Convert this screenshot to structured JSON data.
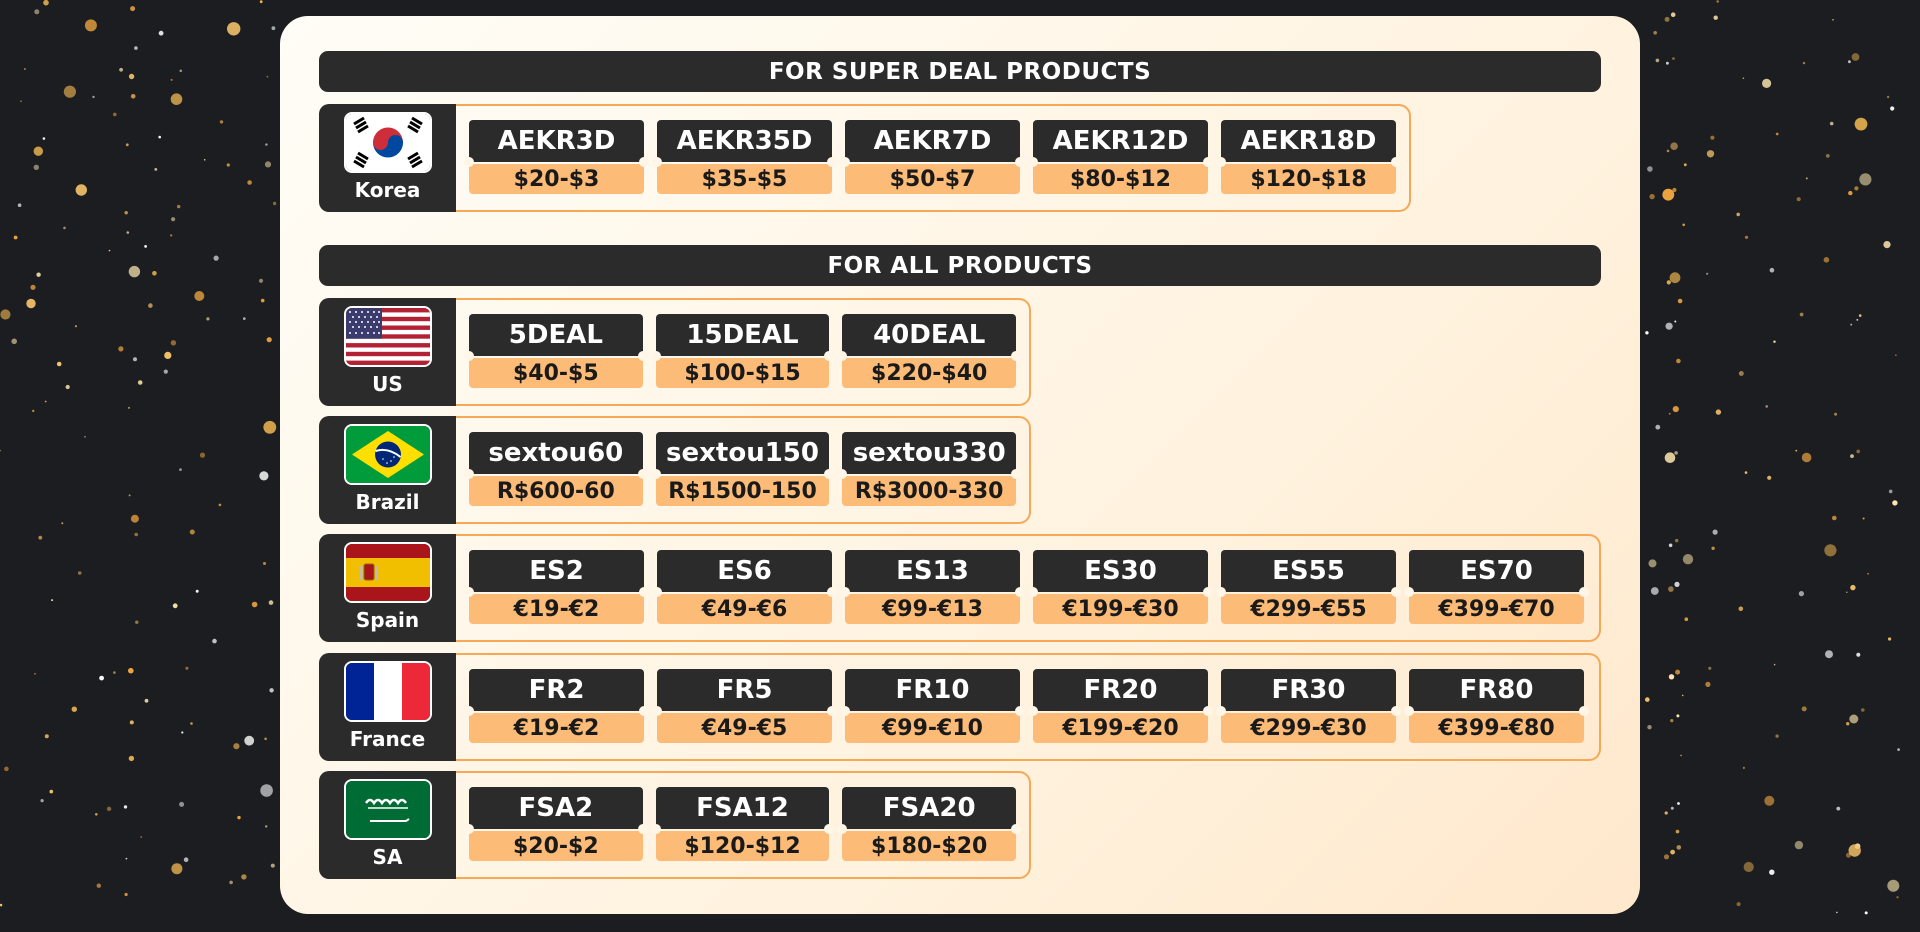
{
  "colors": {
    "background": "#1c1d21",
    "panel": "#fff6e8",
    "dark": "#2b2b2b",
    "accent_border": "#f5a956",
    "price_fill": "#fdbb78"
  },
  "sections": [
    {
      "title": "FOR SUPER DEAL PRODUCTS",
      "rows": [
        {
          "country": "Korea",
          "flag": "korea-flag-icon",
          "coupons": [
            {
              "code": "AEKR3D",
              "price": "$20-$3"
            },
            {
              "code": "AEKR35D",
              "price": "$35-$5"
            },
            {
              "code": "AEKR7D",
              "price": "$50-$7"
            },
            {
              "code": "AEKR12D",
              "price": "$80-$12"
            },
            {
              "code": "AEKR18D",
              "price": "$120-$18"
            }
          ]
        }
      ]
    },
    {
      "title": "FOR ALL PRODUCTS",
      "rows": [
        {
          "country": "US",
          "flag": "us-flag-icon",
          "coupons": [
            {
              "code": "5DEAL",
              "price": "$40-$5"
            },
            {
              "code": "15DEAL",
              "price": "$100-$15"
            },
            {
              "code": "40DEAL",
              "price": "$220-$40"
            }
          ]
        },
        {
          "country": "Brazil",
          "flag": "brazil-flag-icon",
          "coupons": [
            {
              "code": "sextou60",
              "price": "R$600-60"
            },
            {
              "code": "sextou150",
              "price": "R$1500-150"
            },
            {
              "code": "sextou330",
              "price": "R$3000-330"
            }
          ]
        },
        {
          "country": "Spain",
          "flag": "spain-flag-icon",
          "coupons": [
            {
              "code": "ES2",
              "price": "€19-€2"
            },
            {
              "code": "ES6",
              "price": "€49-€6"
            },
            {
              "code": "ES13",
              "price": "€99-€13"
            },
            {
              "code": "ES30",
              "price": "€199-€30"
            },
            {
              "code": "ES55",
              "price": "€299-€55"
            },
            {
              "code": "ES70",
              "price": "€399-€70"
            }
          ]
        },
        {
          "country": "France",
          "flag": "france-flag-icon",
          "coupons": [
            {
              "code": "FR2",
              "price": "€19-€2"
            },
            {
              "code": "FR5",
              "price": "€49-€5"
            },
            {
              "code": "FR10",
              "price": "€99-€10"
            },
            {
              "code": "FR20",
              "price": "€199-€20"
            },
            {
              "code": "FR30",
              "price": "€299-€30"
            },
            {
              "code": "FR80",
              "price": "€399-€80"
            }
          ]
        },
        {
          "country": "SA",
          "flag": "saudi-arabia-flag-icon",
          "coupons": [
            {
              "code": "FSA2",
              "price": "$20-$2"
            },
            {
              "code": "FSA12",
              "price": "$120-$12"
            },
            {
              "code": "FSA20",
              "price": "$180-$20"
            }
          ]
        }
      ]
    }
  ]
}
